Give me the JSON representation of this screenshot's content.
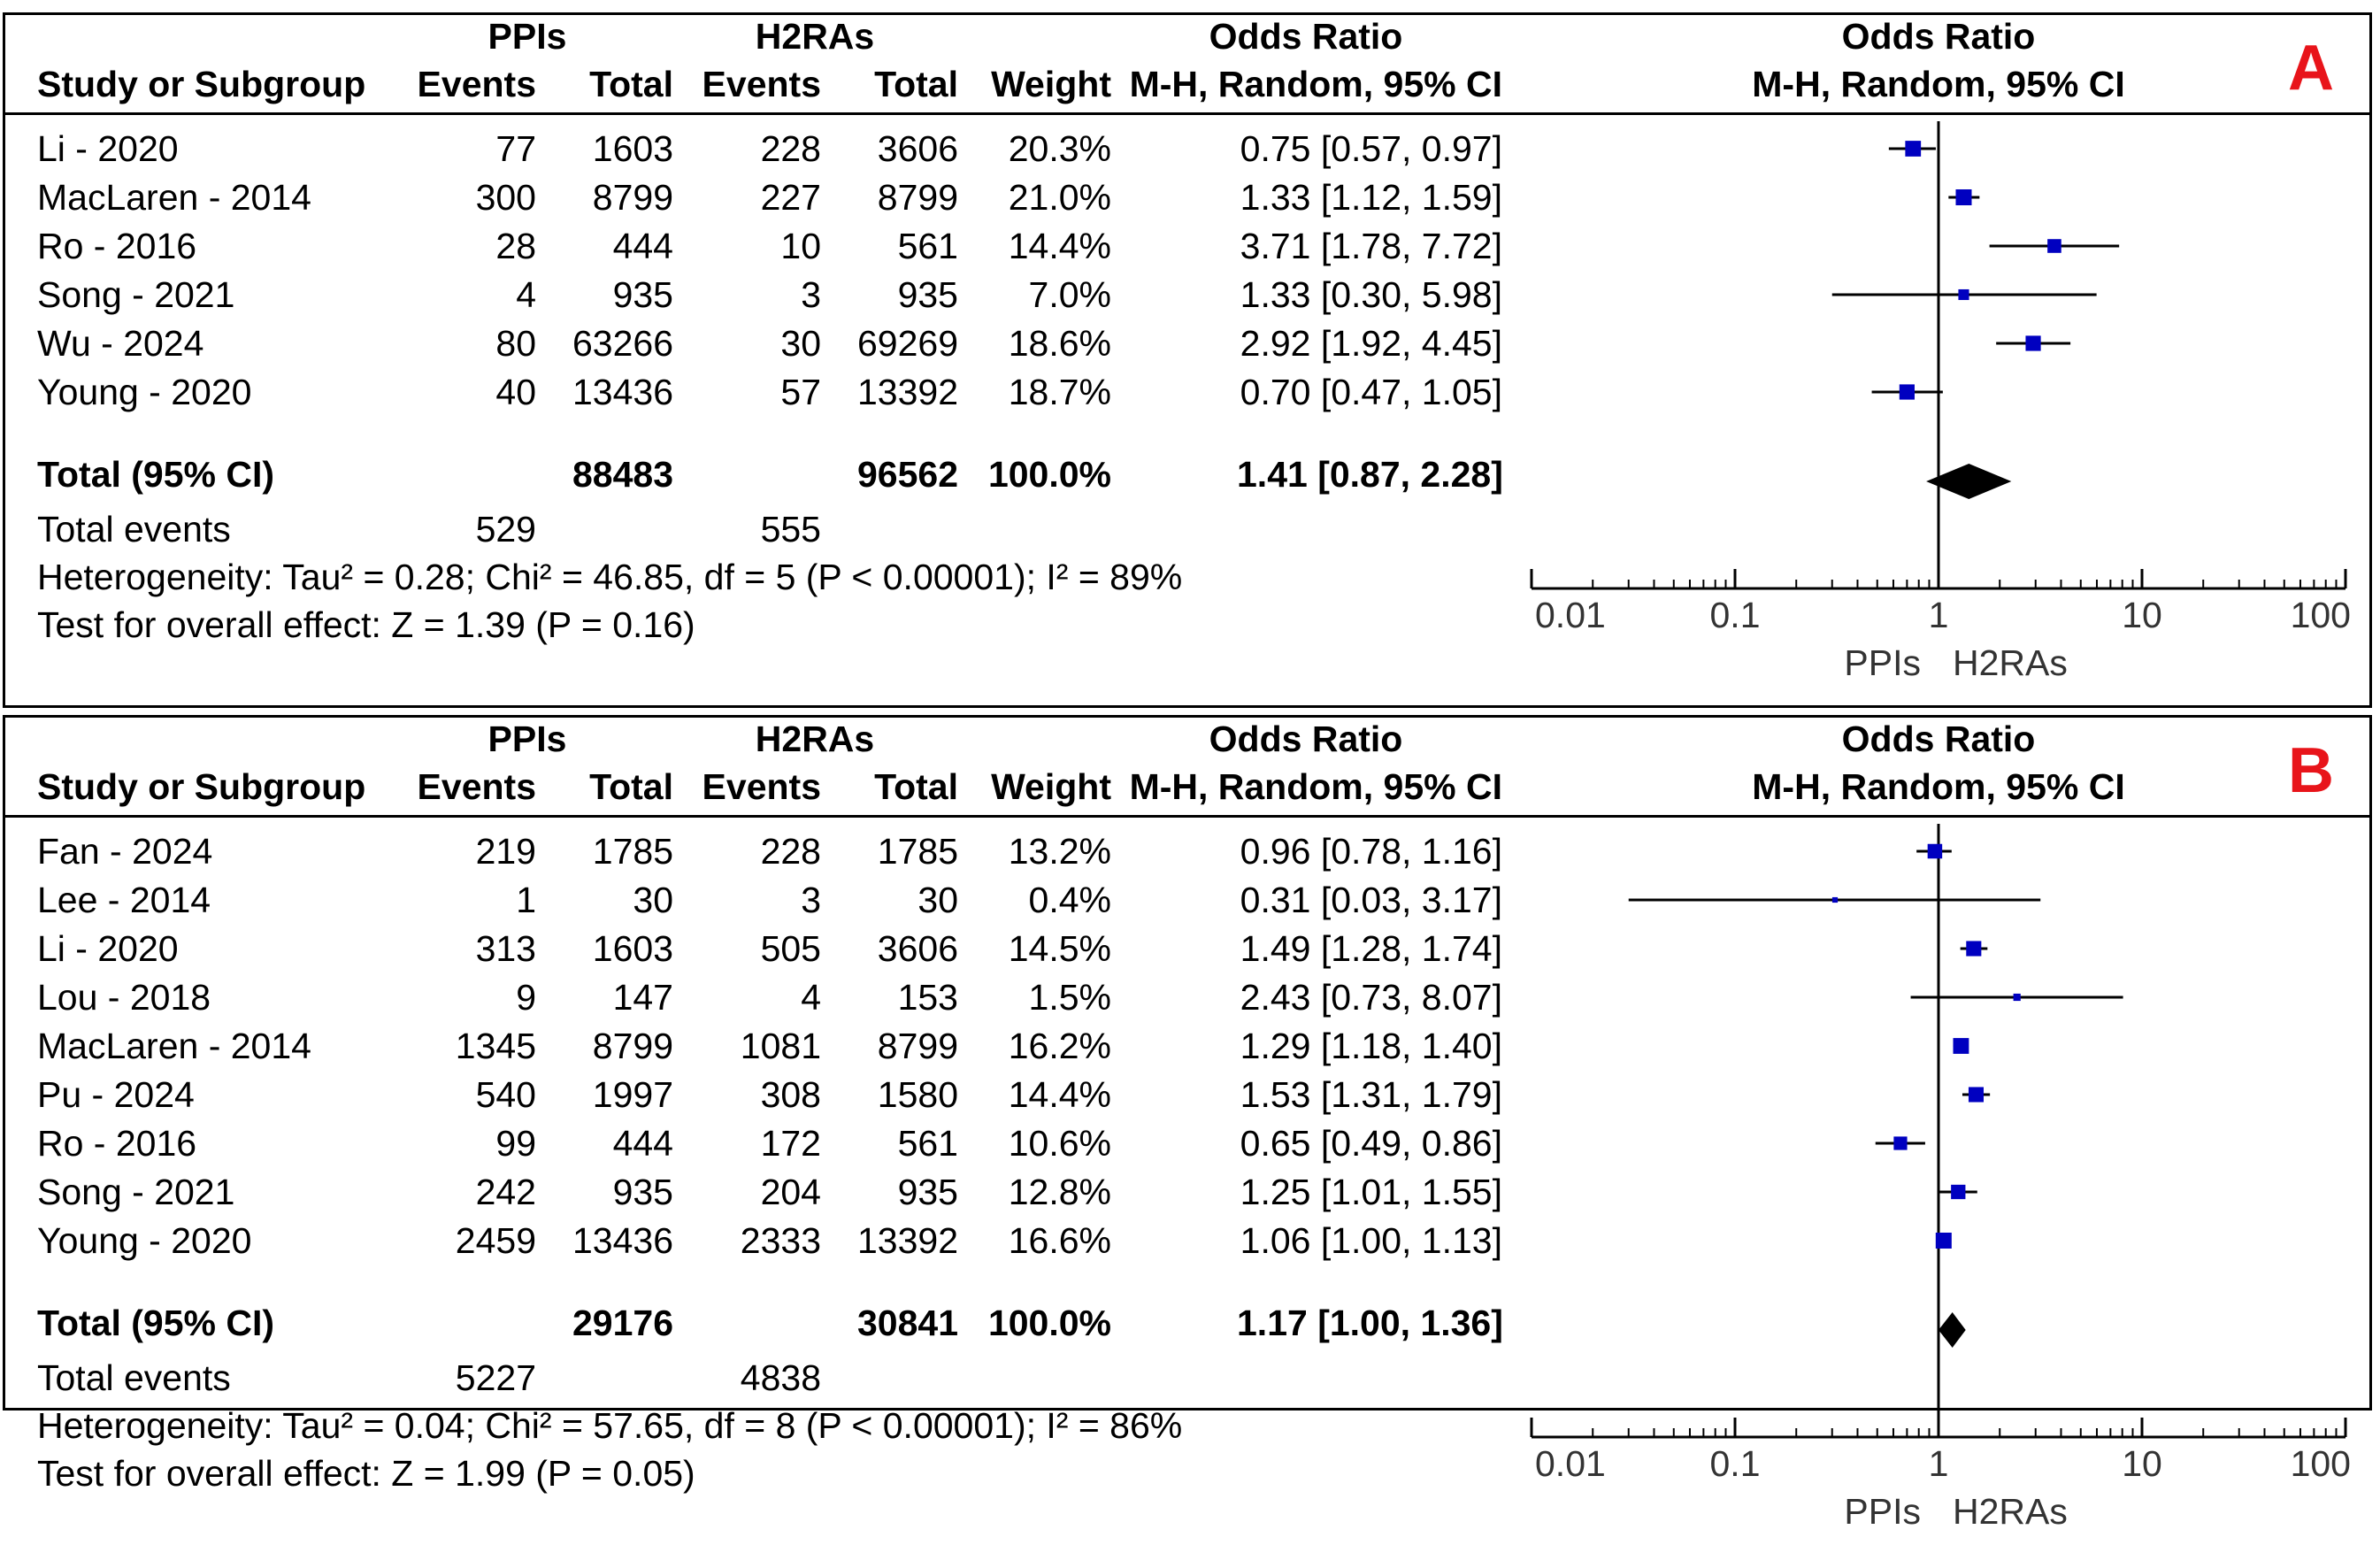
{
  "panels": [
    {
      "letter": "A",
      "header": {
        "group1": "PPIs",
        "group2": "H2RAs",
        "or_top": "Odds Ratio",
        "or_sub": "M-H, Random, 95% CI",
        "plot_top": "Odds Ratio",
        "plot_sub": "M-H, Random, 95% CI",
        "study": "Study or Subgroup",
        "events": "Events",
        "total": "Total",
        "weight": "Weight"
      },
      "rows": [
        {
          "study": "Li - 2020",
          "e1": "77",
          "t1": "1603",
          "e2": "228",
          "t2": "3606",
          "weight": "20.3%",
          "ci": "0.75 [0.57, 0.97]"
        },
        {
          "study": "MacLaren - 2014",
          "e1": "300",
          "t1": "8799",
          "e2": "227",
          "t2": "8799",
          "weight": "21.0%",
          "ci": "1.33 [1.12, 1.59]"
        },
        {
          "study": "Ro - 2016",
          "e1": "28",
          "t1": "444",
          "e2": "10",
          "t2": "561",
          "weight": "14.4%",
          "ci": "3.71 [1.78, 7.72]"
        },
        {
          "study": "Song - 2021",
          "e1": "4",
          "t1": "935",
          "e2": "3",
          "t2": "935",
          "weight": "7.0%",
          "ci": "1.33 [0.30, 5.98]"
        },
        {
          "study": "Wu - 2024",
          "e1": "80",
          "t1": "63266",
          "e2": "30",
          "t2": "69269",
          "weight": "18.6%",
          "ci": "2.92 [1.92, 4.45]"
        },
        {
          "study": "Young - 2020",
          "e1": "40",
          "t1": "13436",
          "e2": "57",
          "t2": "13392",
          "weight": "18.7%",
          "ci": "0.70 [0.47, 1.05]"
        }
      ],
      "total": {
        "label": "Total (95% CI)",
        "t1": "88483",
        "t2": "96562",
        "weight": "100.0%",
        "ci": "1.41 [0.87, 2.28]"
      },
      "total_events": {
        "label": "Total events",
        "e1": "529",
        "e2": "555"
      },
      "heterogeneity": "Heterogeneity: Tau² = 0.28; Chi² = 46.85, df = 5 (P < 0.00001); I² = 89%",
      "overall": "Test for overall effect: Z = 1.39 (P = 0.16)",
      "axis_ticks": [
        "0.01",
        "0.1",
        "1",
        "10",
        "100"
      ],
      "favours_left": "PPIs",
      "favours_right": "H2RAs"
    },
    {
      "letter": "B",
      "header": {
        "group1": "PPIs",
        "group2": "H2RAs",
        "or_top": "Odds Ratio",
        "or_sub": "M-H, Random, 95% CI",
        "plot_top": "Odds Ratio",
        "plot_sub": "M-H, Random, 95% CI",
        "study": "Study or Subgroup",
        "events": "Events",
        "total": "Total",
        "weight": "Weight"
      },
      "rows": [
        {
          "study": "Fan - 2024",
          "e1": "219",
          "t1": "1785",
          "e2": "228",
          "t2": "1785",
          "weight": "13.2%",
          "ci": "0.96 [0.78, 1.16]"
        },
        {
          "study": "Lee - 2014",
          "e1": "1",
          "t1": "30",
          "e2": "3",
          "t2": "30",
          "weight": "0.4%",
          "ci": "0.31 [0.03, 3.17]"
        },
        {
          "study": "Li - 2020",
          "e1": "313",
          "t1": "1603",
          "e2": "505",
          "t2": "3606",
          "weight": "14.5%",
          "ci": "1.49 [1.28, 1.74]"
        },
        {
          "study": "Lou - 2018",
          "e1": "9",
          "t1": "147",
          "e2": "4",
          "t2": "153",
          "weight": "1.5%",
          "ci": "2.43 [0.73, 8.07]"
        },
        {
          "study": "MacLaren - 2014",
          "e1": "1345",
          "t1": "8799",
          "e2": "1081",
          "t2": "8799",
          "weight": "16.2%",
          "ci": "1.29 [1.18, 1.40]"
        },
        {
          "study": "Pu - 2024",
          "e1": "540",
          "t1": "1997",
          "e2": "308",
          "t2": "1580",
          "weight": "14.4%",
          "ci": "1.53 [1.31, 1.79]"
        },
        {
          "study": "Ro - 2016",
          "e1": "99",
          "t1": "444",
          "e2": "172",
          "t2": "561",
          "weight": "10.6%",
          "ci": "0.65 [0.49, 0.86]"
        },
        {
          "study": "Song - 2021",
          "e1": "242",
          "t1": "935",
          "e2": "204",
          "t2": "935",
          "weight": "12.8%",
          "ci": "1.25 [1.01, 1.55]"
        },
        {
          "study": "Young - 2020",
          "e1": "2459",
          "t1": "13436",
          "e2": "2333",
          "t2": "13392",
          "weight": "16.6%",
          "ci": "1.06 [1.00, 1.13]"
        }
      ],
      "total": {
        "label": "Total (95% CI)",
        "t1": "29176",
        "t2": "30841",
        "weight": "100.0%",
        "ci": "1.17 [1.00, 1.36]"
      },
      "total_events": {
        "label": "Total events",
        "e1": "5227",
        "e2": "4838"
      },
      "heterogeneity": "Heterogeneity: Tau² = 0.04; Chi² = 57.65, df = 8 (P < 0.00001); I² = 86%",
      "overall": "Test for overall effect: Z = 1.99 (P = 0.05)",
      "axis_ticks": [
        "0.01",
        "0.1",
        "1",
        "10",
        "100"
      ],
      "favours_left": "PPIs",
      "favours_right": "H2RAs"
    }
  ],
  "chart_data": [
    {
      "type": "forest",
      "scale": "log",
      "xlim": [
        0.01,
        100
      ],
      "marker_color": "#0000c0",
      "studies": [
        {
          "name": "Li - 2020",
          "or": 0.75,
          "lo": 0.57,
          "hi": 0.97,
          "weight": 20.3
        },
        {
          "name": "MacLaren - 2014",
          "or": 1.33,
          "lo": 1.12,
          "hi": 1.59,
          "weight": 21.0
        },
        {
          "name": "Ro - 2016",
          "or": 3.71,
          "lo": 1.78,
          "hi": 7.72,
          "weight": 14.4
        },
        {
          "name": "Song - 2021",
          "or": 1.33,
          "lo": 0.3,
          "hi": 5.98,
          "weight": 7.0
        },
        {
          "name": "Wu - 2024",
          "or": 2.92,
          "lo": 1.92,
          "hi": 4.45,
          "weight": 18.6
        },
        {
          "name": "Young - 2020",
          "or": 0.7,
          "lo": 0.47,
          "hi": 1.05,
          "weight": 18.7
        }
      ],
      "pooled": {
        "or": 1.41,
        "lo": 0.87,
        "hi": 2.28
      }
    },
    {
      "type": "forest",
      "scale": "log",
      "xlim": [
        0.01,
        100
      ],
      "marker_color": "#0000c0",
      "studies": [
        {
          "name": "Fan - 2024",
          "or": 0.96,
          "lo": 0.78,
          "hi": 1.16,
          "weight": 13.2
        },
        {
          "name": "Lee - 2014",
          "or": 0.31,
          "lo": 0.03,
          "hi": 3.17,
          "weight": 0.4
        },
        {
          "name": "Li - 2020",
          "or": 1.49,
          "lo": 1.28,
          "hi": 1.74,
          "weight": 14.5
        },
        {
          "name": "Lou - 2018",
          "or": 2.43,
          "lo": 0.73,
          "hi": 8.07,
          "weight": 1.5
        },
        {
          "name": "MacLaren - 2014",
          "or": 1.29,
          "lo": 1.18,
          "hi": 1.4,
          "weight": 16.2
        },
        {
          "name": "Pu - 2024",
          "or": 1.53,
          "lo": 1.31,
          "hi": 1.79,
          "weight": 14.4
        },
        {
          "name": "Ro - 2016",
          "or": 0.65,
          "lo": 0.49,
          "hi": 0.86,
          "weight": 10.6
        },
        {
          "name": "Song - 2021",
          "or": 1.25,
          "lo": 1.01,
          "hi": 1.55,
          "weight": 12.8
        },
        {
          "name": "Young - 2020",
          "or": 1.06,
          "lo": 1.0,
          "hi": 1.13,
          "weight": 16.6
        }
      ],
      "pooled": {
        "or": 1.17,
        "lo": 1.0,
        "hi": 1.36
      }
    }
  ]
}
